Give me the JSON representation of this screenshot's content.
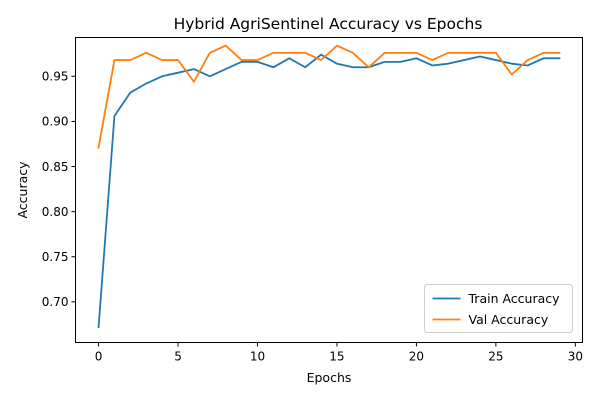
{
  "chart_data": {
    "type": "line",
    "title": "Hybrid AgriSentinel Accuracy vs Epochs",
    "xlabel": "Epochs",
    "ylabel": "Accuracy",
    "xlim": [
      -1.45,
      30.45
    ],
    "ylim": [
      0.655,
      0.993
    ],
    "xticks": [
      0,
      5,
      10,
      15,
      20,
      25,
      30
    ],
    "yticks": [
      0.7,
      0.75,
      0.8,
      0.85,
      0.9,
      0.95
    ],
    "xtick_labels": [
      "0",
      "5",
      "10",
      "15",
      "20",
      "25",
      "30"
    ],
    "ytick_labels": [
      "0.70",
      "0.75",
      "0.80",
      "0.85",
      "0.90",
      "0.95"
    ],
    "grid": false,
    "legend_position": "bottom-right",
    "x": [
      0,
      1,
      2,
      3,
      4,
      5,
      6,
      7,
      8,
      9,
      10,
      11,
      12,
      13,
      14,
      15,
      16,
      17,
      18,
      19,
      20,
      21,
      22,
      23,
      24,
      25,
      26,
      27,
      28,
      29
    ],
    "series": [
      {
        "name": "Train Accuracy",
        "color": "#1f77b4",
        "values": [
          0.672,
          0.906,
          0.932,
          0.942,
          0.95,
          0.954,
          0.958,
          0.95,
          0.958,
          0.966,
          0.966,
          0.96,
          0.97,
          0.96,
          0.974,
          0.964,
          0.96,
          0.96,
          0.966,
          0.966,
          0.97,
          0.962,
          0.964,
          0.968,
          0.972,
          0.968,
          0.964,
          0.962,
          0.97,
          0.97
        ]
      },
      {
        "name": "Val Accuracy",
        "color": "#ff7f0e",
        "values": [
          0.871,
          0.968,
          0.968,
          0.976,
          0.968,
          0.968,
          0.944,
          0.976,
          0.984,
          0.968,
          0.968,
          0.976,
          0.976,
          0.976,
          0.968,
          0.984,
          0.976,
          0.96,
          0.976,
          0.976,
          0.976,
          0.968,
          0.976,
          0.976,
          0.976,
          0.976,
          0.952,
          0.968,
          0.976,
          0.976
        ]
      }
    ]
  }
}
